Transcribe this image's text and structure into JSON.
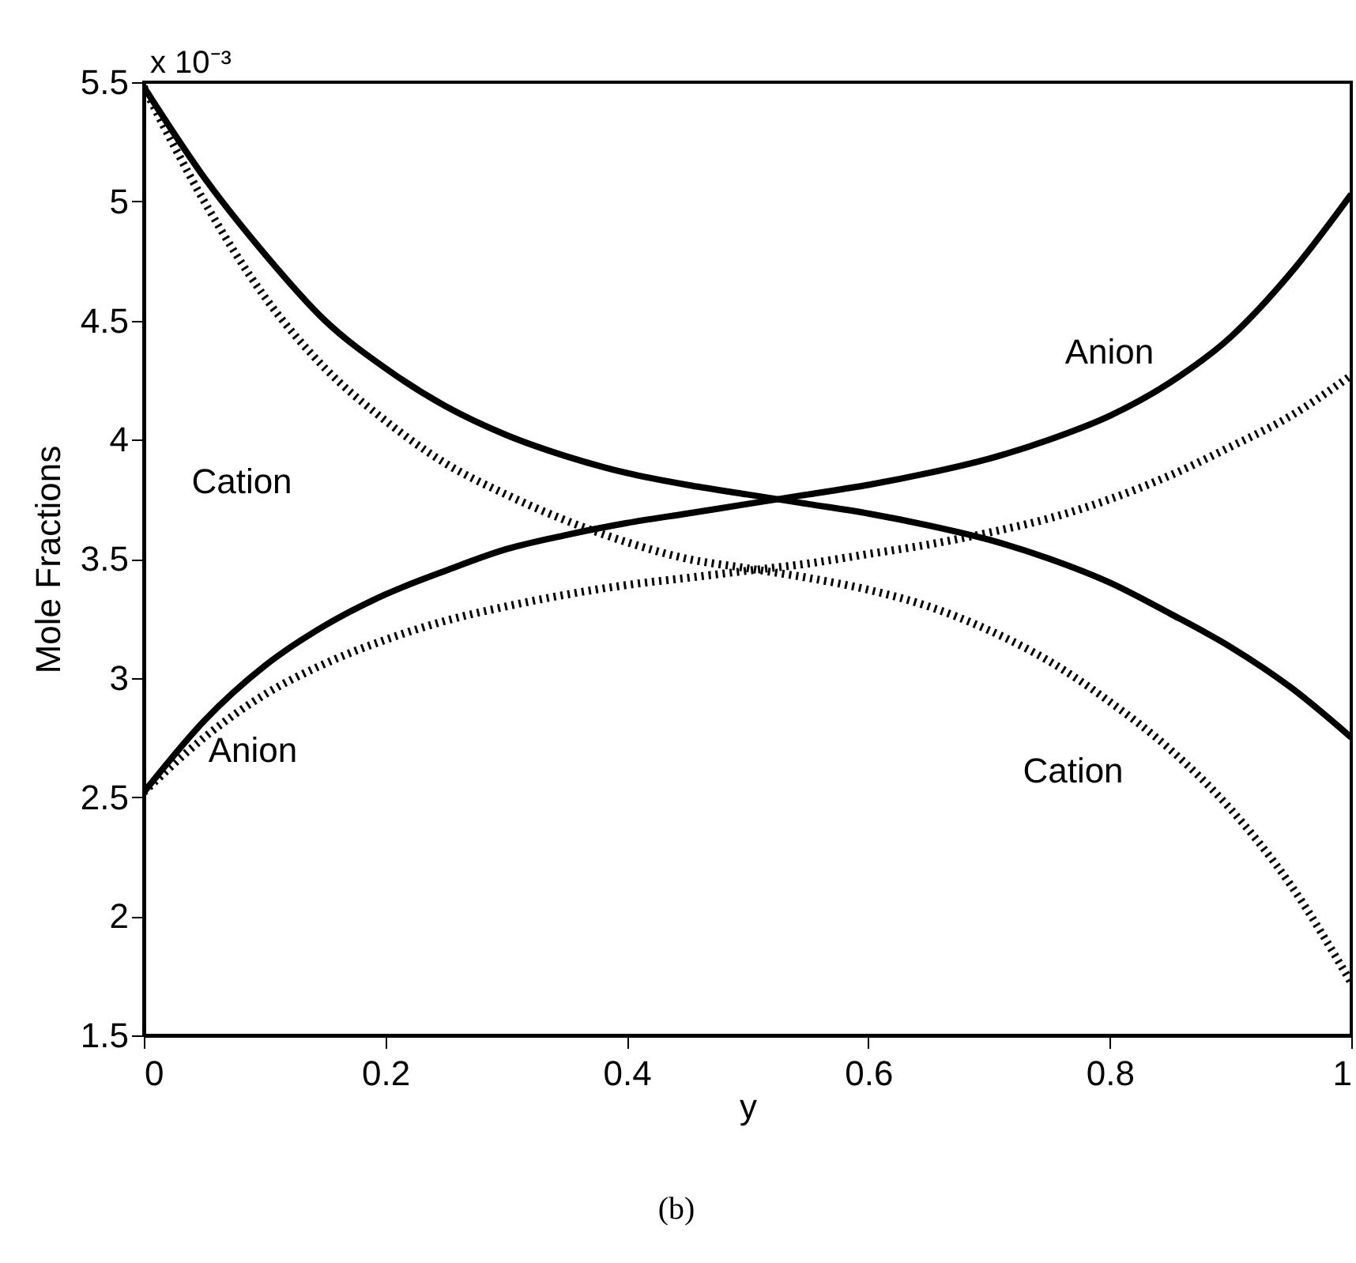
{
  "chart_data": {
    "type": "line",
    "xlabel": "y",
    "ylabel": "Mole Fractions",
    "x": [
      0,
      0.05,
      0.1,
      0.15,
      0.2,
      0.25,
      0.3,
      0.35,
      0.4,
      0.45,
      0.5,
      0.55,
      0.6,
      0.65,
      0.7,
      0.75,
      0.8,
      0.85,
      0.9,
      0.95,
      1
    ],
    "series": [
      {
        "color": "#000000",
        "line_style": "solid",
        "values": [
          5.48,
          5.1,
          4.78,
          4.5,
          4.3,
          4.14,
          4.02,
          3.93,
          3.86,
          3.81,
          3.77,
          3.73,
          3.69,
          3.64,
          3.58,
          3.5,
          3.4,
          3.27,
          3.13,
          2.96,
          2.75
        ]
      },
      {
        "color": "#000000",
        "line_style": "solid",
        "values": [
          2.52,
          2.82,
          3.05,
          3.22,
          3.35,
          3.45,
          3.54,
          3.6,
          3.65,
          3.69,
          3.73,
          3.77,
          3.81,
          3.86,
          3.92,
          4.0,
          4.1,
          4.24,
          4.43,
          4.7,
          5.03
        ]
      },
      {
        "color": "#000000",
        "line_style": "dotted",
        "values": [
          5.48,
          5.0,
          4.6,
          4.3,
          4.08,
          3.9,
          3.77,
          3.66,
          3.57,
          3.5,
          3.46,
          3.42,
          3.37,
          3.3,
          3.2,
          3.07,
          2.9,
          2.7,
          2.45,
          2.13,
          1.72
        ]
      },
      {
        "color": "#000000",
        "line_style": "dotted",
        "values": [
          2.52,
          2.75,
          2.93,
          3.06,
          3.16,
          3.24,
          3.3,
          3.35,
          3.39,
          3.42,
          3.45,
          3.48,
          3.52,
          3.56,
          3.61,
          3.67,
          3.75,
          3.85,
          3.97,
          4.1,
          4.27
        ]
      }
    ],
    "xlim": [
      0,
      1
    ],
    "xticks": [
      0,
      0.2,
      0.4,
      0.6,
      0.8,
      1
    ],
    "ylim": [
      1.5,
      5.5
    ],
    "yticks": [
      1.5,
      2,
      2.5,
      3,
      3.5,
      4,
      4.5,
      5,
      5.5
    ],
    "annotations": [
      "Cation",
      "Anion",
      "Anion",
      "Cation",
      "x 10⁻³",
      "(b)"
    ]
  }
}
